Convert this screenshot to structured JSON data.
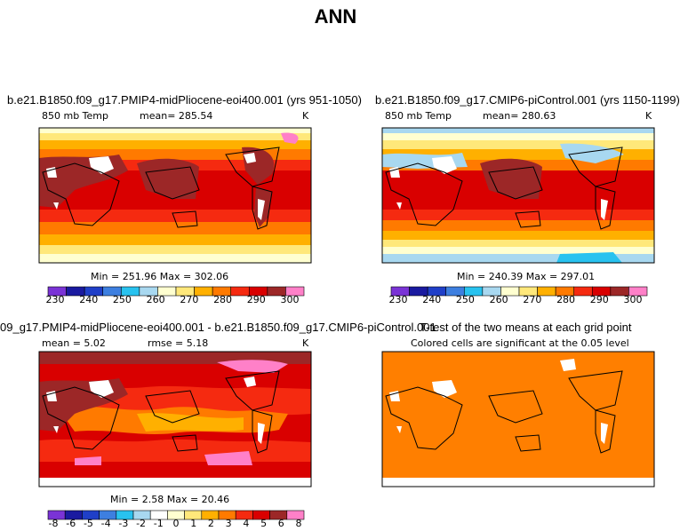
{
  "title": "ANN",
  "panels": {
    "p1": {
      "title": "b.e21.B1850.f09_g17.PMIP4-midPliocene-eoi400.001 (yrs 951-1050)",
      "var": "850 mb Temp",
      "mean": "mean=  285.54",
      "unit": "K",
      "minmax": "Min = 251.96 Max = 302.06"
    },
    "p2": {
      "title": "b.e21.B1850.f09_g17.CMIP6-piControl.001 (yrs 1150-1199)",
      "var": "850 mb Temp",
      "mean": "mean=  280.63",
      "unit": "K",
      "minmax": "Min = 240.39 Max = 297.01"
    },
    "p3": {
      "title": "09_g17.PMIP4-midPliocene-eoi400.001 - b.e21.B1850.f09_g17.CMIP6-piControl.001",
      "mean": "mean =   5.02",
      "rmse": "rmse =   5.18",
      "unit": "K",
      "minmax": "Min =   2.58 Max =  20.46"
    },
    "p4": {
      "title": "T-test of the two means at each grid point",
      "subtitle": "Colored cells are significant at the 0.05 level"
    }
  },
  "colors": {
    "abs_scale": [
      "#7a33d6",
      "#1a1aa0",
      "#1f3fc8",
      "#3d7fe0",
      "#28c2ef",
      "#a8d8f0",
      "#ffffd0",
      "#ffe87a",
      "#ffb000",
      "#ff7a00",
      "#f52a10",
      "#d90000",
      "#9c2727",
      "#ff80c8"
    ],
    "diff_scale": [
      "#7a33d6",
      "#1a1aa0",
      "#1f3fc8",
      "#3d7fe0",
      "#28c2ef",
      "#a8d8f0",
      "#ffffff",
      "#ffffd0",
      "#ffe87a",
      "#ffb000",
      "#ff7a00",
      "#f52a10",
      "#d90000",
      "#9c2727",
      "#ff80c8"
    ],
    "ttest_fill": "#ff7f00"
  },
  "chart_data": [
    {
      "type": "heatmap",
      "title": "b.e21.B1850.f09_g17.PMIP4-midPliocene-eoi400.001 (yrs 951-1050)",
      "variable": "850 mb Temp",
      "units": "K",
      "mean": 285.54,
      "min": 251.96,
      "max": 302.06,
      "colorbar_ticks": [
        230,
        240,
        250,
        260,
        270,
        280,
        290,
        300
      ]
    },
    {
      "type": "heatmap",
      "title": "b.e21.B1850.f09_g17.CMIP6-piControl.001 (yrs 1150-1199)",
      "variable": "850 mb Temp",
      "units": "K",
      "mean": 280.63,
      "min": 240.39,
      "max": 297.01,
      "colorbar_ticks": [
        230,
        240,
        250,
        260,
        270,
        280,
        290,
        300
      ]
    },
    {
      "type": "heatmap",
      "title": "09_g17.PMIP4-midPliocene-eoi400.001 - b.e21.B1850.f09_g17.CMIP6-piControl.001",
      "units": "K",
      "mean": 5.02,
      "rmse": 5.18,
      "min": 2.58,
      "max": 20.46,
      "colorbar_ticks": [
        "-8",
        "-6",
        "-5",
        "-4",
        "-3",
        "-2",
        "-1",
        "0",
        "1",
        "2",
        "3",
        "4",
        "5",
        "6",
        "8"
      ]
    },
    {
      "type": "heatmap",
      "title": "T-test of the two means at each grid point",
      "subtitle": "Colored cells are significant at the 0.05 level"
    }
  ]
}
